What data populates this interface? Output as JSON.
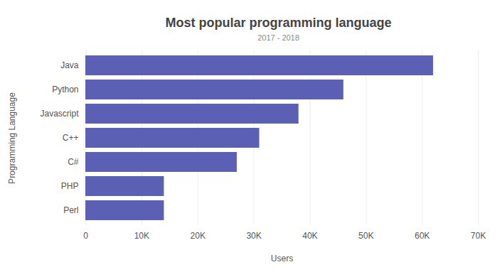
{
  "chart_data": {
    "type": "bar",
    "orientation": "horizontal",
    "title": "Most popular programming language",
    "subtitle": "2017 - 2018",
    "x_label": "Users",
    "y_label": "Programming Language",
    "categories": [
      "Java",
      "Python",
      "Javascript",
      "C++",
      "C#",
      "PHP",
      "Perl"
    ],
    "values": [
      62000,
      46000,
      38000,
      31000,
      27000,
      14000,
      14000
    ],
    "color": "#5c60b5",
    "xlim": [
      0,
      70000
    ],
    "xticks": [
      0,
      {
        "value": 10000,
        "label": "10K"
      },
      {
        "value": 20000,
        "label": "20K"
      },
      {
        "value": 30000,
        "label": "30K"
      },
      {
        "value": 40000,
        "label": "40K"
      },
      {
        "value": 50000,
        "label": "50K"
      },
      {
        "value": 60000,
        "label": "60K"
      },
      {
        "value": 70000,
        "label": "70K"
      }
    ],
    "grid": true
  }
}
